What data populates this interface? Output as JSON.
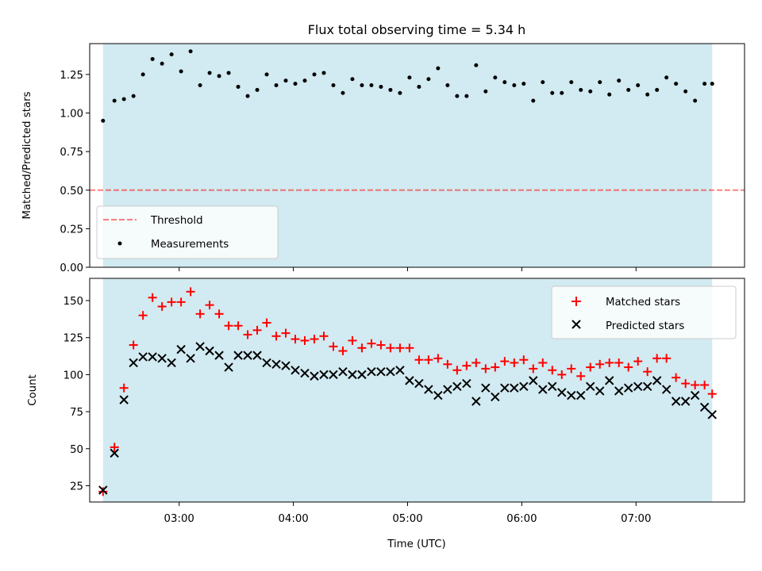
{
  "figure": {
    "title": "Flux total observing time = 5.34 h"
  },
  "colors": {
    "shade": "#add8e6",
    "threshold": "#ff0000",
    "measurements": "#000000",
    "matched": "#ff0000",
    "predicted": "#000000"
  },
  "chart_data": [
    {
      "type": "scatter",
      "panel": "top",
      "title": "Flux total observing time = 5.34 h",
      "xlabel": "",
      "ylabel": "Matched/Predicted stars",
      "xlim": [
        "02:13",
        "07:57"
      ],
      "ylim": [
        0,
        1.45
      ],
      "yticks": [
        "0.00",
        "0.25",
        "0.50",
        "0.75",
        "1.00",
        "1.25"
      ],
      "x_tick_positions": [
        "03:00",
        "04:00",
        "05:00",
        "06:00",
        "07:00"
      ],
      "shaded_span": [
        "02:20",
        "07:40"
      ],
      "threshold": {
        "name": "Threshold",
        "value": 0.5,
        "style": "dashed"
      },
      "legend": [
        "Threshold",
        "Measurements"
      ],
      "legend_position": "lower-left",
      "series": [
        {
          "name": "Measurements",
          "marker": "dot",
          "x": [
            "02:20",
            "02:26",
            "02:31",
            "02:36",
            "02:41",
            "02:46",
            "02:51",
            "02:56",
            "03:01",
            "03:06",
            "03:11",
            "03:16",
            "03:21",
            "03:26",
            "03:31",
            "03:36",
            "03:41",
            "03:46",
            "03:51",
            "03:56",
            "04:01",
            "04:06",
            "04:11",
            "04:16",
            "04:21",
            "04:26",
            "04:31",
            "04:36",
            "04:41",
            "04:46",
            "04:51",
            "04:56",
            "05:01",
            "05:06",
            "05:11",
            "05:16",
            "05:21",
            "05:26",
            "05:31",
            "05:36",
            "05:41",
            "05:46",
            "05:51",
            "05:56",
            "06:01",
            "06:06",
            "06:11",
            "06:16",
            "06:21",
            "06:26",
            "06:31",
            "06:36",
            "06:41",
            "06:46",
            "06:51",
            "06:56",
            "07:01",
            "07:06",
            "07:11",
            "07:16",
            "07:21",
            "07:26",
            "07:31",
            "07:36",
            "07:40"
          ],
          "values": [
            0.95,
            1.08,
            1.09,
            1.11,
            1.25,
            1.35,
            1.32,
            1.38,
            1.27,
            1.4,
            1.18,
            1.26,
            1.24,
            1.26,
            1.17,
            1.11,
            1.15,
            1.25,
            1.18,
            1.21,
            1.19,
            1.21,
            1.25,
            1.26,
            1.18,
            1.13,
            1.22,
            1.18,
            1.18,
            1.17,
            1.15,
            1.13,
            1.23,
            1.17,
            1.22,
            1.29,
            1.18,
            1.11,
            1.11,
            1.31,
            1.14,
            1.23,
            1.2,
            1.18,
            1.19,
            1.08,
            1.2,
            1.13,
            1.13,
            1.2,
            1.15,
            1.14,
            1.2,
            1.12,
            1.21,
            1.15,
            1.18,
            1.12,
            1.15,
            1.23,
            1.19,
            1.14,
            1.08,
            1.19,
            1.19
          ]
        }
      ]
    },
    {
      "type": "scatter",
      "panel": "bottom",
      "title": "",
      "xlabel": "Time (UTC)",
      "ylabel": "Count",
      "xlim": [
        "02:13",
        "07:57"
      ],
      "ylim": [
        14,
        165
      ],
      "yticks": [
        "25",
        "50",
        "75",
        "100",
        "125",
        "150"
      ],
      "xticks": [
        "03:00",
        "04:00",
        "05:00",
        "06:00",
        "07:00"
      ],
      "shaded_span": [
        "02:20",
        "07:40"
      ],
      "legend": [
        "Matched stars",
        "Predicted stars"
      ],
      "legend_position": "top-right",
      "series": [
        {
          "name": "Matched stars",
          "marker": "plus",
          "x": [
            "02:20",
            "02:26",
            "02:31",
            "02:36",
            "02:41",
            "02:46",
            "02:51",
            "02:56",
            "03:01",
            "03:06",
            "03:11",
            "03:16",
            "03:21",
            "03:26",
            "03:31",
            "03:36",
            "03:41",
            "03:46",
            "03:51",
            "03:56",
            "04:01",
            "04:06",
            "04:11",
            "04:16",
            "04:21",
            "04:26",
            "04:31",
            "04:36",
            "04:41",
            "04:46",
            "04:51",
            "04:56",
            "05:01",
            "05:06",
            "05:11",
            "05:16",
            "05:21",
            "05:26",
            "05:31",
            "05:36",
            "05:41",
            "05:46",
            "05:51",
            "05:56",
            "06:01",
            "06:06",
            "06:11",
            "06:16",
            "06:21",
            "06:26",
            "06:31",
            "06:36",
            "06:41",
            "06:46",
            "06:51",
            "06:56",
            "07:01",
            "07:06",
            "07:11",
            "07:16",
            "07:21",
            "07:26",
            "07:31",
            "07:36",
            "07:40"
          ],
          "values": [
            21,
            51,
            91,
            120,
            140,
            152,
            146,
            149,
            149,
            156,
            141,
            147,
            141,
            133,
            133,
            127,
            130,
            135,
            126,
            128,
            124,
            123,
            124,
            126,
            119,
            116,
            123,
            118,
            121,
            120,
            118,
            118,
            118,
            110,
            110,
            111,
            107,
            103,
            106,
            108,
            104,
            105,
            109,
            108,
            110,
            104,
            108,
            103,
            100,
            104,
            99,
            105,
            107,
            108,
            108,
            105,
            109,
            102,
            111,
            111,
            98,
            94,
            93,
            93,
            87
          ]
        },
        {
          "name": "Predicted stars",
          "marker": "x",
          "x": [
            "02:20",
            "02:26",
            "02:31",
            "02:36",
            "02:41",
            "02:46",
            "02:51",
            "02:56",
            "03:01",
            "03:06",
            "03:11",
            "03:16",
            "03:21",
            "03:26",
            "03:31",
            "03:36",
            "03:41",
            "03:46",
            "03:51",
            "03:56",
            "04:01",
            "04:06",
            "04:11",
            "04:16",
            "04:21",
            "04:26",
            "04:31",
            "04:36",
            "04:41",
            "04:46",
            "04:51",
            "04:56",
            "05:01",
            "05:06",
            "05:11",
            "05:16",
            "05:21",
            "05:26",
            "05:31",
            "05:36",
            "05:41",
            "05:46",
            "05:51",
            "05:56",
            "06:01",
            "06:06",
            "06:11",
            "06:16",
            "06:21",
            "06:26",
            "06:31",
            "06:36",
            "06:41",
            "06:46",
            "06:51",
            "06:56",
            "07:01",
            "07:06",
            "07:11",
            "07:16",
            "07:21",
            "07:26",
            "07:31",
            "07:36",
            "07:40"
          ],
          "values": [
            22,
            47,
            83,
            108,
            112,
            112,
            111,
            108,
            117,
            111,
            119,
            116,
            113,
            105,
            113,
            113,
            113,
            108,
            107,
            106,
            103,
            101,
            99,
            100,
            100,
            102,
            100,
            100,
            102,
            102,
            102,
            103,
            96,
            94,
            90,
            86,
            90,
            92,
            94,
            82,
            91,
            85,
            91,
            91,
            92,
            96,
            90,
            92,
            88,
            86,
            86,
            92,
            89,
            96,
            89,
            91,
            92,
            92,
            96,
            90,
            82,
            82,
            86,
            78,
            73
          ]
        }
      ]
    }
  ]
}
